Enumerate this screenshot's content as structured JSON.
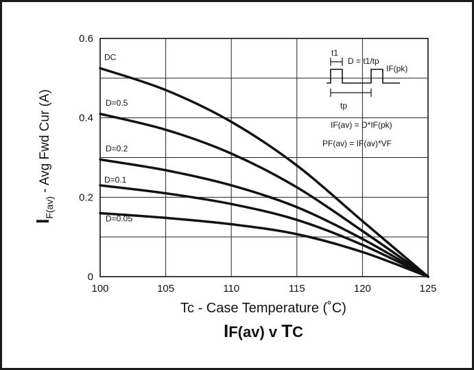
{
  "chart_data": {
    "type": "line",
    "title": "",
    "title_parts": {
      "main_i": "I",
      "main_rest": "F(av) v ",
      "tc_t": "T",
      "tc_c": "C"
    },
    "xlabel": "Tc - Case Temperature (˚C)",
    "ylabel": {
      "big": "I",
      "sub": "F(av)",
      "rest": " - Avg Fwd Cur (A)"
    },
    "xlim": [
      100,
      125
    ],
    "ylim": [
      0,
      0.6
    ],
    "xticks": [
      100,
      105,
      110,
      115,
      120,
      125
    ],
    "xtick_labels": [
      "100",
      "105",
      "110",
      "115",
      "120",
      "125"
    ],
    "yticks": [
      0,
      0.2,
      0.4,
      0.6
    ],
    "ytick_labels": [
      "0",
      "0.2",
      "0.4",
      "0.6"
    ],
    "grid": true,
    "series": [
      {
        "name": "DC",
        "x": [
          100,
          105,
          110,
          115,
          120,
          125
        ],
        "y": [
          0.525,
          0.47,
          0.39,
          0.28,
          0.14,
          0
        ]
      },
      {
        "name": "D=0.5",
        "x": [
          100,
          105,
          110,
          115,
          120,
          125
        ],
        "y": [
          0.41,
          0.37,
          0.31,
          0.225,
          0.115,
          0
        ]
      },
      {
        "name": "D=0.2",
        "x": [
          100,
          105,
          110,
          115,
          120,
          125
        ],
        "y": [
          0.295,
          0.268,
          0.23,
          0.175,
          0.095,
          0
        ]
      },
      {
        "name": "D=0.1",
        "x": [
          100,
          105,
          110,
          115,
          120,
          125
        ],
        "y": [
          0.23,
          0.21,
          0.183,
          0.143,
          0.08,
          0
        ]
      },
      {
        "name": "D=0.05",
        "x": [
          100,
          105,
          110,
          115,
          120,
          125
        ],
        "y": [
          0.16,
          0.148,
          0.132,
          0.107,
          0.062,
          0
        ]
      }
    ],
    "inset": {
      "t1": "t1",
      "duty": "D = t1/tp",
      "ifpk": "IF(pk)",
      "tp": "tp",
      "eq1": "IF(av) = D*IF(pk)",
      "eq2": "PF(av) = IF(av)*VF"
    }
  }
}
